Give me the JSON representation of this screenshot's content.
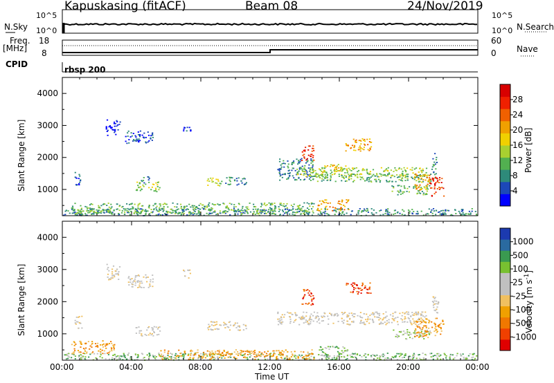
{
  "header": {
    "station": "Kapuskasing (fitACF)",
    "beam": "Beam 08",
    "date": "24/Nov/2019"
  },
  "top_panels": {
    "nsky_label": "N.Sky",
    "nsearch_label": "N.Search",
    "noise_ticks_left": [
      "10^5",
      "10^0"
    ],
    "noise_ticks_right": [
      "10^5",
      "10^0"
    ],
    "freq_label": "Freq.",
    "freq_unit": "[MHz]",
    "freq_ticks": [
      "18",
      "8"
    ],
    "nave_label": "Nave",
    "nave_ticks": [
      "60",
      "0"
    ],
    "cpid_label": "CPID",
    "cpid_value": "rbsp 200"
  },
  "chart_data": [
    {
      "type": "heatmap",
      "name": "power",
      "ylabel": "Slant Range [km]",
      "yticks": [
        1000,
        2000,
        3000,
        4000
      ],
      "ylim": [
        180,
        4500
      ],
      "xlim": [
        0,
        24
      ],
      "colorbar_label": "Power [dB]",
      "colorbar_ticks": [
        "28",
        "24",
        "20",
        "16",
        "12",
        "8",
        "4"
      ],
      "colorbar_colors": [
        "#0000ff",
        "#1c48b8",
        "#2e8a7a",
        "#52b050",
        "#a8d030",
        "#f0d000",
        "#f0a000",
        "#f06000",
        "#f02000",
        "#d80000"
      ],
      "regions": [
        {
          "t0": 0.0,
          "t1": 24.0,
          "r0": 200,
          "r1": 420,
          "level": 2
        },
        {
          "t0": 0.5,
          "t1": 14.5,
          "r0": 250,
          "r1": 600,
          "level": 3
        },
        {
          "t0": 0.7,
          "t1": 1.1,
          "r0": 1150,
          "r1": 1600,
          "level": 1
        },
        {
          "t0": 2.5,
          "t1": 3.3,
          "r0": 2700,
          "r1": 3200,
          "level": 0
        },
        {
          "t0": 3.6,
          "t1": 5.2,
          "r0": 2450,
          "r1": 2850,
          "level": 1
        },
        {
          "t0": 4.2,
          "t1": 5.6,
          "r0": 950,
          "r1": 1250,
          "level": 4
        },
        {
          "t0": 4.5,
          "t1": 5.0,
          "r0": 1200,
          "r1": 1450,
          "level": 2
        },
        {
          "t0": 6.9,
          "t1": 7.4,
          "r0": 2750,
          "r1": 3000,
          "level": 1
        },
        {
          "t0": 8.3,
          "t1": 9.2,
          "r0": 1120,
          "r1": 1380,
          "level": 4
        },
        {
          "t0": 9.2,
          "t1": 10.6,
          "r0": 1150,
          "r1": 1400,
          "level": 2
        },
        {
          "t0": 12.4,
          "t1": 14.5,
          "r0": 1300,
          "r1": 2000,
          "level": 2
        },
        {
          "t0": 13.8,
          "t1": 14.5,
          "r0": 1900,
          "r1": 2400,
          "level": 8
        },
        {
          "t0": 13.5,
          "t1": 21.0,
          "r0": 1400,
          "r1": 1700,
          "level": 4
        },
        {
          "t0": 14.5,
          "t1": 21.5,
          "r0": 1250,
          "r1": 1500,
          "level": 3
        },
        {
          "t0": 15.0,
          "t1": 16.5,
          "r0": 1550,
          "r1": 1800,
          "level": 5
        },
        {
          "t0": 16.3,
          "t1": 17.8,
          "r0": 2200,
          "r1": 2600,
          "level": 6
        },
        {
          "t0": 14.7,
          "t1": 16.5,
          "r0": 350,
          "r1": 700,
          "level": 6
        },
        {
          "t0": 19.0,
          "t1": 21.2,
          "r0": 850,
          "r1": 1150,
          "level": 3
        },
        {
          "t0": 20.3,
          "t1": 21.2,
          "r0": 1000,
          "r1": 1500,
          "level": 6
        },
        {
          "t0": 21.2,
          "t1": 22.0,
          "r0": 800,
          "r1": 1400,
          "level": 8
        },
        {
          "t0": 21.3,
          "t1": 21.6,
          "r0": 1500,
          "r1": 2200,
          "level": 2
        }
      ]
    },
    {
      "type": "heatmap",
      "name": "velocity",
      "ylabel": "Slant Range [km]",
      "yticks": [
        1000,
        2000,
        3000,
        4000
      ],
      "ylim": [
        180,
        4500
      ],
      "xlim": [
        0,
        24
      ],
      "colorbar_label": "Velocity [m s",
      "colorbar_exponent": "-1",
      "colorbar_suffix": "]",
      "colorbar_ticks": [
        "1000",
        "500",
        "100",
        "25",
        "-25",
        "-100",
        "-500",
        "-1000"
      ],
      "colorbar_colors": [
        "#e00000",
        "#f04000",
        "#f07800",
        "#f0a000",
        "#f0c060",
        "#c0c0c0",
        "#c0c0c0",
        "#78c030",
        "#3a9a50",
        "#2a6aa0",
        "#1c3ab0"
      ],
      "regions": [
        {
          "t0": 0.0,
          "t1": 24.0,
          "r0": 200,
          "r1": 420,
          "level": 7
        },
        {
          "t0": 5.5,
          "t1": 14.5,
          "r0": 220,
          "r1": 520,
          "level": 3
        },
        {
          "t0": 0.5,
          "t1": 3.0,
          "r0": 400,
          "r1": 800,
          "level": 3
        },
        {
          "t0": 0.7,
          "t1": 1.1,
          "r0": 1150,
          "r1": 1600,
          "level": 5
        },
        {
          "t0": 2.5,
          "t1": 3.3,
          "r0": 2700,
          "r1": 3200,
          "level": 5
        },
        {
          "t0": 3.6,
          "t1": 5.2,
          "r0": 2450,
          "r1": 2850,
          "level": 5
        },
        {
          "t0": 4.2,
          "t1": 5.6,
          "r0": 950,
          "r1": 1250,
          "level": 5
        },
        {
          "t0": 6.9,
          "t1": 7.4,
          "r0": 2750,
          "r1": 3000,
          "level": 5
        },
        {
          "t0": 8.3,
          "t1": 10.6,
          "r0": 1120,
          "r1": 1400,
          "level": 5
        },
        {
          "t0": 12.4,
          "t1": 21.0,
          "r0": 1300,
          "r1": 1700,
          "level": 5
        },
        {
          "t0": 13.8,
          "t1": 14.5,
          "r0": 1900,
          "r1": 2400,
          "level": 1
        },
        {
          "t0": 16.3,
          "t1": 17.8,
          "r0": 2250,
          "r1": 2600,
          "level": 1
        },
        {
          "t0": 14.8,
          "t1": 16.5,
          "r0": 300,
          "r1": 650,
          "level": 7
        },
        {
          "t0": 19.0,
          "t1": 21.2,
          "r0": 850,
          "r1": 1150,
          "level": 6
        },
        {
          "t0": 20.3,
          "t1": 22.0,
          "r0": 900,
          "r1": 1500,
          "level": 3
        },
        {
          "t0": 21.3,
          "t1": 21.7,
          "r0": 1500,
          "r1": 2200,
          "level": 5
        }
      ]
    }
  ],
  "xaxis": {
    "ticks": [
      "00:00",
      "04:00",
      "08:00",
      "12:00",
      "16:00",
      "20:00",
      "00:00"
    ],
    "label": "Time UT"
  }
}
